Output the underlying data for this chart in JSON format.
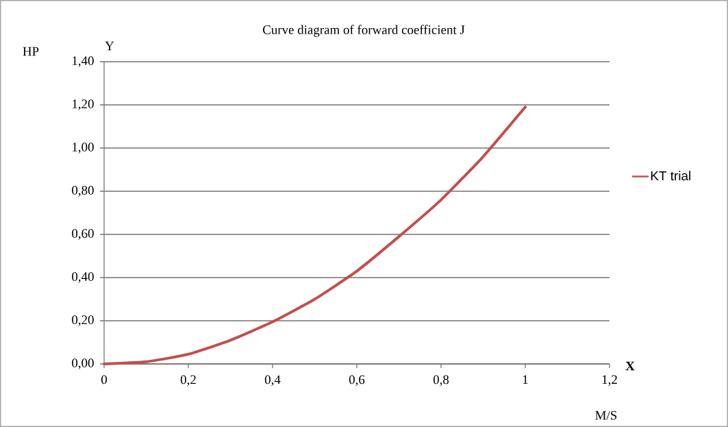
{
  "chart_data": {
    "type": "line",
    "title": "Curve diagram of forward coefficient J",
    "xlabel": "M/S",
    "ylabel": "HP",
    "annotations": [
      "Y",
      "X"
    ],
    "x": [
      0,
      0.1,
      0.2,
      0.3,
      0.4,
      0.5,
      0.6,
      0.7,
      0.8,
      0.9,
      1.0
    ],
    "series": [
      {
        "name": "KT trial",
        "color": "#c0504d",
        "values": [
          0,
          0.01,
          0.045,
          0.11,
          0.195,
          0.3,
          0.43,
          0.59,
          0.76,
          0.96,
          1.19
        ]
      }
    ],
    "xlim": [
      0,
      1.2
    ],
    "ylim": [
      0,
      1.4
    ],
    "xticks": [
      0,
      {
        "value": 0.2,
        "label": "0,2"
      },
      {
        "value": 0.4,
        "label": "0,4"
      },
      {
        "value": 0.6,
        "label": "0,6"
      },
      {
        "value": 0.8,
        "label": "0,8"
      },
      1,
      {
        "value": 1.2,
        "label": "1,2"
      }
    ],
    "yticks": [
      {
        "value": 0,
        "label": "0,00"
      },
      {
        "value": 0.2,
        "label": "0,20"
      },
      {
        "value": 0.4,
        "label": "0,40"
      },
      {
        "value": 0.6,
        "label": "0,60"
      },
      {
        "value": 0.8,
        "label": "0,80"
      },
      {
        "value": 1.0,
        "label": "1,00"
      },
      {
        "value": 1.2,
        "label": "1,20"
      },
      {
        "value": 1.4,
        "label": "1,40"
      }
    ],
    "grid": "y",
    "legend": "right"
  }
}
